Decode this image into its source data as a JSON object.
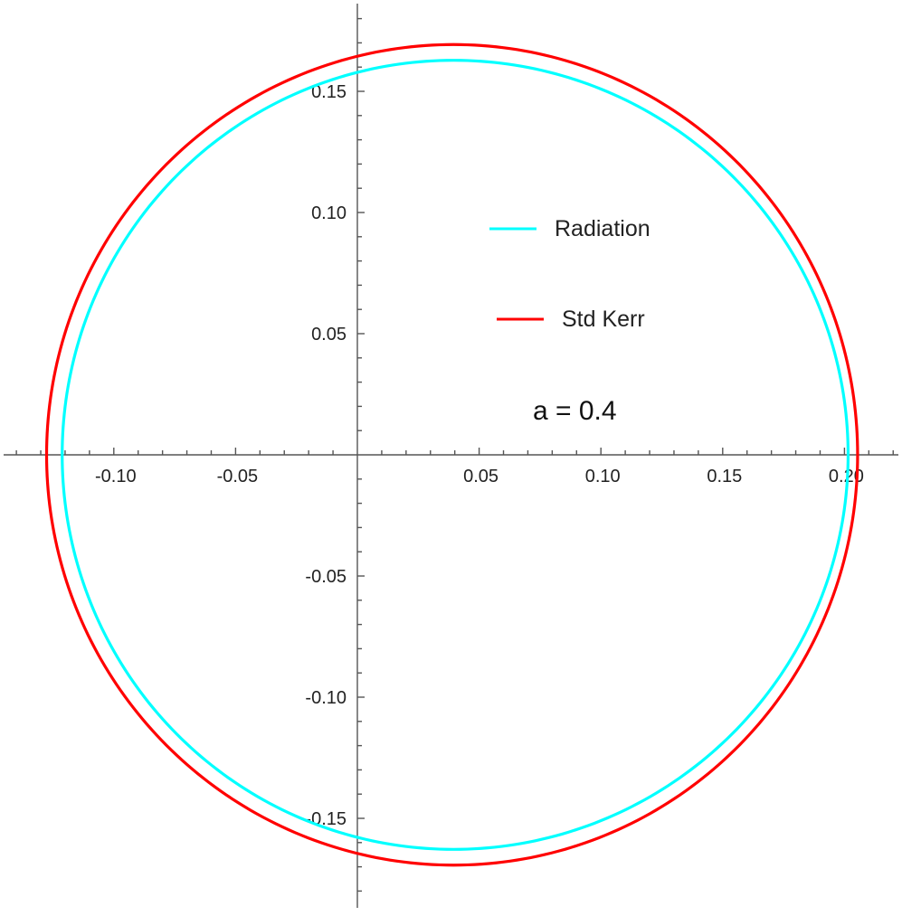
{
  "chart_data": {
    "type": "line",
    "title": "",
    "xlabel": "",
    "ylabel": "",
    "xlim": [
      -0.146,
      0.223
    ],
    "ylim": [
      -0.187,
      0.186
    ],
    "x_ticks": [
      -0.1,
      -0.05,
      0.05,
      0.1,
      0.15,
      0.2
    ],
    "x_tick_labels": [
      "-0.10",
      "-0.05",
      "0.05",
      "0.10",
      "0.15",
      "0.20"
    ],
    "y_ticks": [
      0.15,
      0.1,
      0.05,
      -0.05,
      -0.1,
      -0.15
    ],
    "y_tick_labels": [
      "0.15",
      "0.10",
      "0.05",
      "-0.05",
      "-0.10",
      "-0.15"
    ],
    "grid": false,
    "legend_position": "center-right",
    "annotation": "a = 0.4",
    "series": [
      {
        "name": "Radiation",
        "color": "#00ffff",
        "shape": "closed-curve",
        "x_min": -0.1212,
        "x_max": 0.2015,
        "y_max": 0.1628,
        "y_min": -0.1628,
        "x_at_extreme_y": 0.0395
      },
      {
        "name": "Std Kerr",
        "color": "#ff0000",
        "shape": "closed-curve",
        "x_min": -0.1276,
        "x_max": 0.2054,
        "y_max": 0.1693,
        "y_min": -0.1693,
        "x_at_extreme_y": 0.0395
      }
    ]
  }
}
